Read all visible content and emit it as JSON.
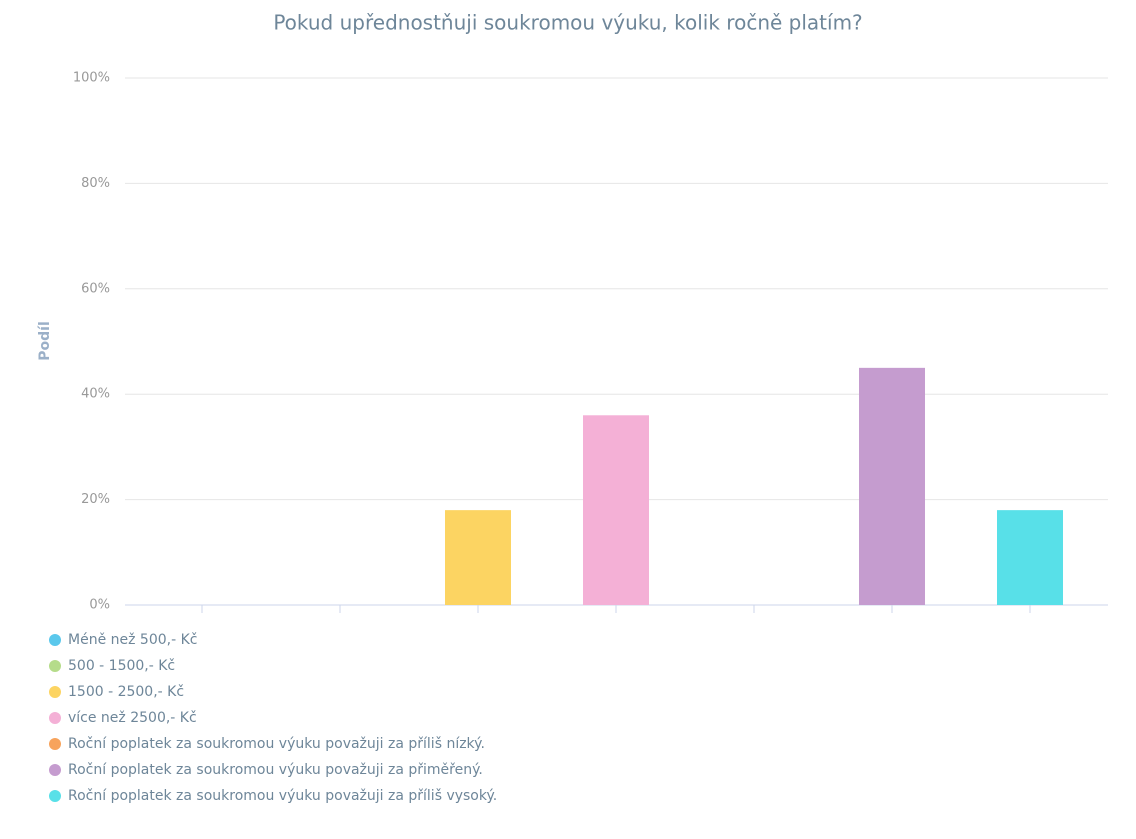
{
  "chart_data": {
    "type": "bar",
    "title": "Pokud upřednostňuji soukromou výuku, kolik ročně platím?",
    "y_label": "Podíl",
    "categories": [
      "Méně než 500,- Kč",
      "500 - 1500,- Kč",
      "1500 - 2500,- Kč",
      "více než 2500,- Kč",
      "Roční poplatek za soukromou výuku považuji za příliš nízký.",
      "Roční poplatek za soukromou výuku považuji za přiměřený.",
      "Roční poplatek za soukromou výuku považuji za příliš vysoký."
    ],
    "values": [
      0,
      0,
      18,
      36,
      0,
      45,
      18
    ],
    "colors": [
      "#5bc8ec",
      "#b5dc8a",
      "#fcd462",
      "#f4b0d6",
      "#f7a35c",
      "#c59ccf",
      "#58e0e8"
    ],
    "ylim": [
      0,
      100
    ],
    "yticks": [
      {
        "value": 0,
        "label": "0%"
      },
      {
        "value": 20,
        "label": "20%"
      },
      {
        "value": 40,
        "label": "40%"
      },
      {
        "value": 60,
        "label": "60%"
      },
      {
        "value": 80,
        "label": "80%"
      },
      {
        "value": 100,
        "label": "100%"
      }
    ],
    "grid": true
  }
}
